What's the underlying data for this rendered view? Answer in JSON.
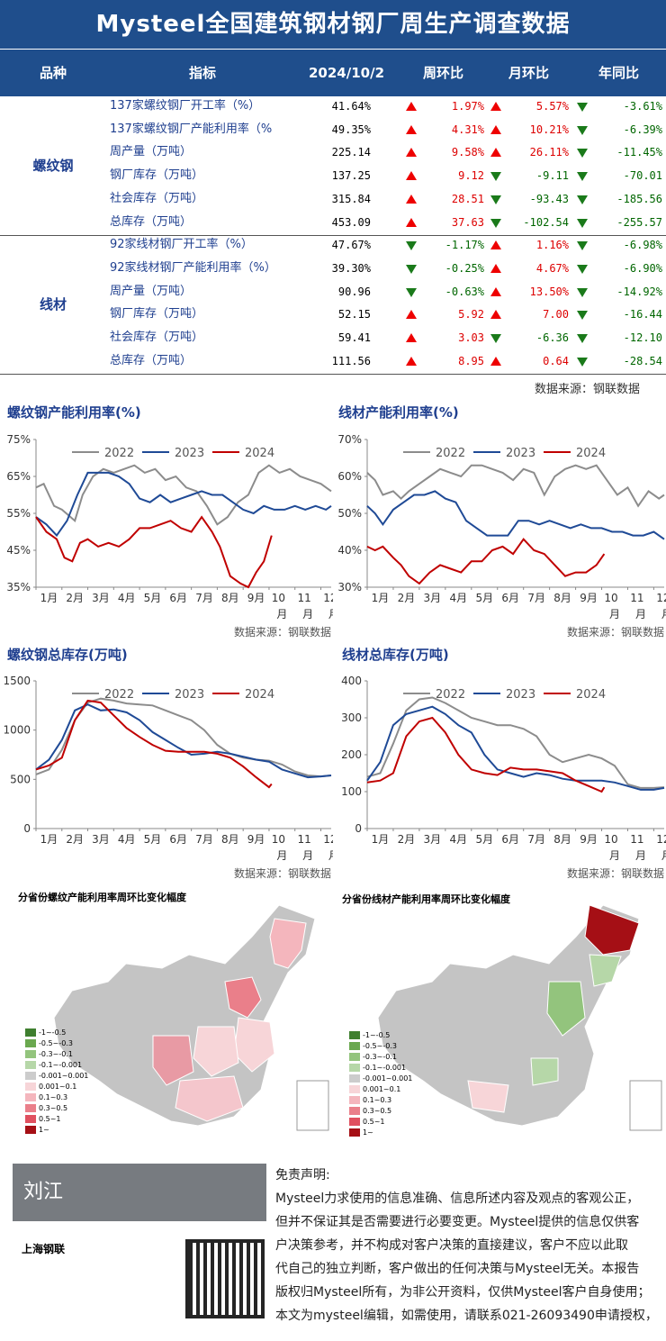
{
  "title": "Mysteel全国建筑钢材钢厂周生产调查数据",
  "header": {
    "variety": "品种",
    "indicator": "指标",
    "date": "2024/10/2",
    "wow": "周环比",
    "mom": "月环比",
    "yoy": "年同比"
  },
  "groups": [
    {
      "name": "螺纹钢",
      "rows": [
        {
          "indicator": "137家螺纹钢厂开工率（%）",
          "value": "41.64%",
          "wow": "1.97%",
          "wow_dir": "up",
          "mom": "5.57%",
          "mom_dir": "up",
          "yoy": "-3.61%",
          "yoy_dir": "down"
        },
        {
          "indicator": "137家螺纹钢厂产能利用率（%",
          "value": "49.35%",
          "wow": "4.31%",
          "wow_dir": "up",
          "mom": "10.21%",
          "mom_dir": "up",
          "yoy": "-6.39%",
          "yoy_dir": "down"
        },
        {
          "indicator": "周产量（万吨）",
          "value": "225.14",
          "wow": "9.58%",
          "wow_dir": "up",
          "mom": "26.11%",
          "mom_dir": "up",
          "yoy": "-11.45%",
          "yoy_dir": "down"
        },
        {
          "indicator": "钢厂库存（万吨）",
          "value": "137.25",
          "wow": "9.12",
          "wow_dir": "up",
          "mom": "-9.11",
          "mom_dir": "down",
          "yoy": "-70.01",
          "yoy_dir": "down"
        },
        {
          "indicator": "社会库存（万吨）",
          "value": "315.84",
          "wow": "28.51",
          "wow_dir": "up",
          "mom": "-93.43",
          "mom_dir": "down",
          "yoy": "-185.56",
          "yoy_dir": "down"
        },
        {
          "indicator": "总库存（万吨）",
          "value": "453.09",
          "wow": "37.63",
          "wow_dir": "up",
          "mom": "-102.54",
          "mom_dir": "down",
          "yoy": "-255.57",
          "yoy_dir": "down"
        }
      ]
    },
    {
      "name": "线材",
      "rows": [
        {
          "indicator": "92家线材钢厂开工率（%）",
          "value": "47.67%",
          "wow": "-1.17%",
          "wow_dir": "down",
          "mom": "1.16%",
          "mom_dir": "up",
          "yoy": "-6.98%",
          "yoy_dir": "down"
        },
        {
          "indicator": "92家线材钢厂产能利用率（%）",
          "value": "39.30%",
          "wow": "-0.25%",
          "wow_dir": "down",
          "mom": "4.67%",
          "mom_dir": "up",
          "yoy": "-6.90%",
          "yoy_dir": "down"
        },
        {
          "indicator": "周产量（万吨）",
          "value": "90.96",
          "wow": "-0.63%",
          "wow_dir": "down",
          "mom": "13.50%",
          "mom_dir": "up",
          "yoy": "-14.92%",
          "yoy_dir": "down"
        },
        {
          "indicator": "钢厂库存（万吨）",
          "value": "52.15",
          "wow": "5.92",
          "wow_dir": "up",
          "mom": "7.00",
          "mom_dir": "up",
          "yoy": "-16.44",
          "yoy_dir": "down"
        },
        {
          "indicator": "社会库存（万吨）",
          "value": "59.41",
          "wow": "3.03",
          "wow_dir": "up",
          "mom": "-6.36",
          "mom_dir": "down",
          "yoy": "-12.10",
          "yoy_dir": "down"
        },
        {
          "indicator": "总库存（万吨）",
          "value": "111.56",
          "wow": "8.95",
          "wow_dir": "up",
          "mom": "0.64",
          "mom_dir": "up",
          "yoy": "-28.54",
          "yoy_dir": "down"
        }
      ]
    }
  ],
  "source_note": "数据来源：钢联数据",
  "colors": {
    "header_bg": "#1f4e8c",
    "y2022": "#8c8c8c",
    "y2023": "#1f4a96",
    "y2024": "#c00000",
    "up": "#e00000",
    "down": "#1a7a1a"
  },
  "chart_data": [
    {
      "type": "line",
      "title": "螺纹钢产能利用率(%)",
      "x_ticks": [
        "1月",
        "2月",
        "3月",
        "4月",
        "5月",
        "6月",
        "7月",
        "8月",
        "9月",
        "10月",
        "11月",
        "12月"
      ],
      "y_ticks": [
        "35%",
        "45%",
        "55%",
        "65%",
        "75%"
      ],
      "ylim": [
        35,
        75
      ],
      "xlim": [
        1,
        12.4
      ],
      "series": [
        {
          "name": "2022",
          "x": [
            1,
            1.3,
            1.7,
            2,
            2.5,
            2.8,
            3.2,
            3.6,
            4,
            4.4,
            4.8,
            5.2,
            5.6,
            6,
            6.4,
            6.8,
            7.2,
            7.6,
            8,
            8.4,
            8.8,
            9.2,
            9.6,
            10,
            10.4,
            10.8,
            11.2,
            11.6,
            12,
            12.4
          ],
          "values": [
            62,
            63,
            57,
            56,
            53,
            60,
            65,
            67,
            66,
            67,
            68,
            66,
            67,
            64,
            65,
            62,
            61,
            57,
            52,
            54,
            58,
            60,
            66,
            68,
            66,
            67,
            65,
            64,
            63,
            61
          ]
        },
        {
          "name": "2023",
          "x": [
            1,
            1.4,
            1.8,
            2.2,
            2.6,
            3,
            3.4,
            3.8,
            4.2,
            4.6,
            5,
            5.4,
            5.8,
            6.2,
            6.6,
            7,
            7.4,
            7.8,
            8.2,
            8.6,
            9,
            9.4,
            9.8,
            10.2,
            10.6,
            11,
            11.4,
            11.8,
            12.2,
            12.4
          ],
          "values": [
            54,
            52,
            49,
            53,
            60,
            66,
            66,
            66,
            65,
            63,
            59,
            58,
            60,
            58,
            59,
            60,
            61,
            60,
            60,
            58,
            56,
            55,
            57,
            56,
            56,
            57,
            56,
            57,
            56,
            57
          ]
        },
        {
          "name": "2024",
          "x": [
            1,
            1.4,
            1.8,
            2.1,
            2.4,
            2.7,
            3,
            3.4,
            3.8,
            4.2,
            4.6,
            5,
            5.4,
            5.8,
            6.2,
            6.6,
            7,
            7.4,
            7.8,
            8.1,
            8.5,
            8.9,
            9.2,
            9.5,
            9.8,
            10.1
          ],
          "values": [
            54,
            50,
            48,
            43,
            42,
            47,
            48,
            46,
            47,
            46,
            48,
            51,
            51,
            52,
            53,
            51,
            50,
            54,
            50,
            46,
            38,
            36,
            35,
            39,
            42,
            49
          ]
        }
      ]
    },
    {
      "type": "line",
      "title": "线材产能利用率(%)",
      "x_ticks": [
        "1月",
        "2月",
        "3月",
        "4月",
        "5月",
        "6月",
        "7月",
        "8月",
        "9月",
        "10月",
        "11月",
        "12月"
      ],
      "y_ticks": [
        "30%",
        "40%",
        "50%",
        "60%",
        "70%"
      ],
      "ylim": [
        30,
        70
      ],
      "xlim": [
        1,
        12.4
      ],
      "series": [
        {
          "name": "2022",
          "x": [
            1,
            1.3,
            1.6,
            2,
            2.3,
            2.6,
            3,
            3.4,
            3.8,
            4.2,
            4.6,
            5,
            5.4,
            5.8,
            6.2,
            6.6,
            7,
            7.4,
            7.8,
            8.2,
            8.6,
            9,
            9.4,
            9.8,
            10.2,
            10.6,
            11,
            11.4,
            11.8,
            12.2,
            12.4
          ],
          "values": [
            61,
            59,
            55,
            56,
            54,
            56,
            58,
            60,
            62,
            61,
            60,
            63,
            63,
            62,
            61,
            59,
            62,
            61,
            55,
            60,
            62,
            63,
            62,
            63,
            59,
            55,
            57,
            52,
            56,
            54,
            55
          ]
        },
        {
          "name": "2023",
          "x": [
            1,
            1.3,
            1.6,
            2,
            2.4,
            2.8,
            3.2,
            3.6,
            4,
            4.4,
            4.8,
            5.2,
            5.6,
            6,
            6.4,
            6.8,
            7.2,
            7.6,
            8,
            8.4,
            8.8,
            9.2,
            9.6,
            10,
            10.4,
            10.8,
            11.2,
            11.6,
            12,
            12.4
          ],
          "values": [
            52,
            50,
            47,
            51,
            53,
            55,
            55,
            56,
            54,
            53,
            48,
            46,
            44,
            44,
            44,
            48,
            48,
            47,
            48,
            47,
            46,
            47,
            46,
            46,
            45,
            45,
            44,
            44,
            45,
            43
          ]
        },
        {
          "name": "2024",
          "x": [
            1,
            1.3,
            1.6,
            2,
            2.3,
            2.6,
            3,
            3.4,
            3.8,
            4.2,
            4.6,
            5,
            5.4,
            5.8,
            6.2,
            6.6,
            7,
            7.4,
            7.8,
            8.2,
            8.6,
            9,
            9.4,
            9.8,
            10.1
          ],
          "values": [
            41,
            40,
            41,
            38,
            36,
            33,
            31,
            34,
            36,
            35,
            34,
            37,
            37,
            40,
            41,
            39,
            43,
            40,
            39,
            36,
            33,
            34,
            34,
            36,
            39
          ]
        }
      ]
    },
    {
      "type": "line",
      "title": "螺纹钢总库存(万吨)",
      "x_ticks": [
        "1月",
        "2月",
        "3月",
        "4月",
        "5月",
        "6月",
        "7月",
        "8月",
        "9月",
        "10月",
        "11月",
        "12月"
      ],
      "y_ticks": [
        "0",
        "500",
        "1000",
        "1500"
      ],
      "ylim": [
        0,
        1500
      ],
      "xlim": [
        1,
        12.4
      ],
      "series": [
        {
          "name": "2022",
          "x": [
            1,
            1.5,
            2,
            2.5,
            3,
            3.5,
            4,
            4.5,
            5,
            5.5,
            6,
            6.5,
            7,
            7.5,
            8,
            8.5,
            9,
            9.5,
            10,
            10.5,
            11,
            11.5,
            12,
            12.4
          ],
          "values": [
            550,
            600,
            800,
            1100,
            1280,
            1320,
            1300,
            1270,
            1260,
            1250,
            1200,
            1150,
            1100,
            1000,
            850,
            760,
            720,
            700,
            690,
            650,
            580,
            540,
            530,
            540
          ]
        },
        {
          "name": "2023",
          "x": [
            1,
            1.5,
            2,
            2.5,
            3,
            3.5,
            4,
            4.5,
            5,
            5.5,
            6,
            6.5,
            7,
            7.5,
            8,
            8.5,
            9,
            9.5,
            10,
            10.5,
            11,
            11.5,
            12,
            12.4
          ],
          "values": [
            600,
            700,
            900,
            1200,
            1260,
            1200,
            1210,
            1180,
            1100,
            980,
            900,
            820,
            750,
            760,
            780,
            760,
            730,
            700,
            680,
            600,
            560,
            520,
            530,
            540
          ]
        },
        {
          "name": "2024",
          "x": [
            1,
            1.5,
            2,
            2.5,
            3,
            3.5,
            4,
            4.5,
            5,
            5.5,
            6,
            6.5,
            7,
            7.5,
            8,
            8.5,
            9,
            9.5,
            10,
            10.1
          ],
          "values": [
            600,
            640,
            720,
            1100,
            1300,
            1280,
            1150,
            1020,
            930,
            850,
            790,
            780,
            780,
            780,
            760,
            720,
            630,
            520,
            420,
            453
          ]
        }
      ]
    },
    {
      "type": "line",
      "title": "线材总库存(万吨)",
      "x_ticks": [
        "1月",
        "2月",
        "3月",
        "4月",
        "5月",
        "6月",
        "7月",
        "8月",
        "9月",
        "10月",
        "11月",
        "12月"
      ],
      "y_ticks": [
        "0",
        "100",
        "200",
        "300",
        "400"
      ],
      "ylim": [
        0,
        400
      ],
      "xlim": [
        1,
        12.4
      ],
      "series": [
        {
          "name": "2022",
          "x": [
            1,
            1.5,
            2,
            2.5,
            3,
            3.5,
            4,
            4.5,
            5,
            5.5,
            6,
            6.5,
            7,
            7.5,
            8,
            8.5,
            9,
            9.5,
            10,
            10.5,
            11,
            11.5,
            12,
            12.4
          ],
          "values": [
            140,
            150,
            230,
            320,
            350,
            355,
            340,
            320,
            300,
            290,
            280,
            280,
            270,
            250,
            200,
            180,
            190,
            200,
            190,
            170,
            120,
            110,
            110,
            112
          ]
        },
        {
          "name": "2023",
          "x": [
            1,
            1.5,
            2,
            2.5,
            3,
            3.5,
            4,
            4.5,
            5,
            5.5,
            6,
            6.5,
            7,
            7.5,
            8,
            8.5,
            9,
            9.5,
            10,
            10.5,
            11,
            11.5,
            12,
            12.4
          ],
          "values": [
            130,
            180,
            280,
            310,
            320,
            330,
            310,
            280,
            260,
            200,
            160,
            150,
            140,
            150,
            145,
            135,
            130,
            130,
            130,
            125,
            115,
            105,
            105,
            110
          ]
        },
        {
          "name": "2024",
          "x": [
            1,
            1.5,
            2,
            2.5,
            3,
            3.5,
            4,
            4.5,
            5,
            5.5,
            6,
            6.5,
            7,
            7.5,
            8,
            8.5,
            9,
            9.5,
            10,
            10.1
          ],
          "values": [
            125,
            130,
            150,
            250,
            290,
            300,
            260,
            200,
            160,
            150,
            145,
            165,
            160,
            160,
            155,
            150,
            130,
            115,
            100,
            112
          ]
        }
      ]
    }
  ],
  "maps": [
    {
      "title": "分省份螺纹产能利用率周环比变化幅度"
    },
    {
      "title": "分省份线材产能利用率周环比变化幅度"
    }
  ],
  "map_legend": [
    {
      "label": "-1~-0.5",
      "color": "#3f7f2f"
    },
    {
      "label": "-0.5~-0.3",
      "color": "#6aa84f"
    },
    {
      "label": "-0.3~-0.1",
      "color": "#93c47d"
    },
    {
      "label": "-0.1~-0.001",
      "color": "#b6d7a8"
    },
    {
      "label": "-0.001~0.001",
      "color": "#cccccc"
    },
    {
      "label": "0.001~0.1",
      "color": "#f7d5d8"
    },
    {
      "label": "0.1~0.3",
      "color": "#f4b6bd"
    },
    {
      "label": "0.3~0.5",
      "color": "#ea7f8a"
    },
    {
      "label": "0.5~1",
      "color": "#e0505f"
    },
    {
      "label": "1~",
      "color": "#a50f15"
    }
  ],
  "footer": {
    "author": "刘江",
    "company": "上海钢联",
    "disclaimer_title": "免责声明:",
    "disclaimer_lines": [
      "Mysteel力求使用的信息准确、信息所述内容及观点的客观公正，",
      "但并不保证其是否需要进行必要变更。Mysteel提供的信息仅供客",
      "户决策参考，并不构成对客户决策的直接建议，客户不应以此取",
      "代自己的独立判断，客户做出的任何决策与Mysteel无关。本报告",
      "版权归Mysteel所有，为非公开资料，仅供Mysteel客户自身使用；",
      "本文为mysteel编辑，如需使用，请联系021-26093490申请授权，"
    ]
  }
}
